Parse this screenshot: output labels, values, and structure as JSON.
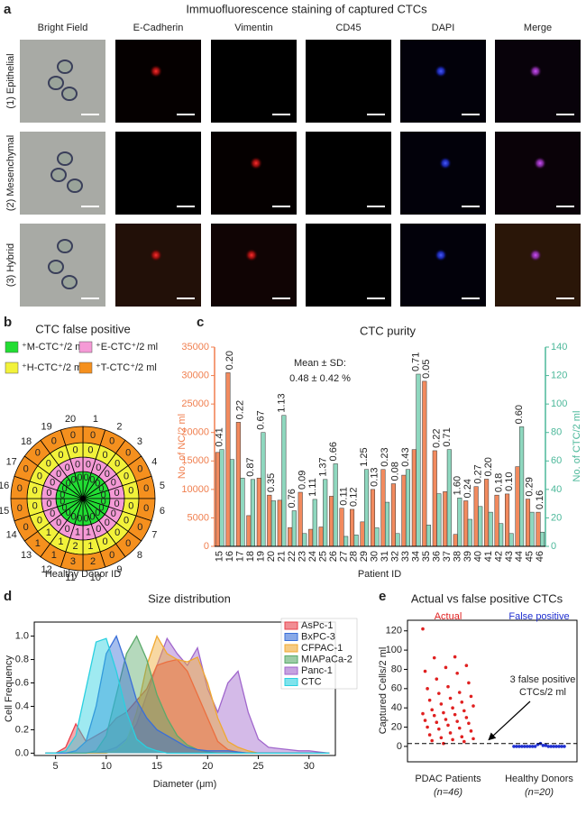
{
  "panel_a": {
    "label": "a",
    "title": "Immuofluorescence staining of captured CTCs",
    "columns": [
      "Bright Field",
      "E-Cadherin",
      "Vimentin",
      "CD45",
      "DAPI",
      "Merge"
    ],
    "rows": [
      "(1) Epithelial",
      "(2) Mesenchymal",
      "(3) Hybrid"
    ]
  },
  "chart_data": [
    {
      "type": "radial",
      "label": "b",
      "title": "CTC false positive",
      "xlabel": "Healthy Donor ID",
      "categories": [
        "1",
        "2",
        "3",
        "4",
        "5",
        "6",
        "7",
        "8",
        "9",
        "10",
        "11",
        "12",
        "13",
        "14",
        "15",
        "16",
        "17",
        "18",
        "19",
        "20"
      ],
      "series": [
        {
          "name": "⁺M-CTC⁺/2 ml",
          "color": "#22dd33",
          "values": [
            0,
            0,
            0,
            0,
            0,
            0,
            0,
            0,
            0,
            0,
            0,
            0,
            0,
            0,
            0,
            0,
            0,
            0,
            0,
            0
          ]
        },
        {
          "name": "⁺E-CTC⁺/2 ml",
          "color": "#f59ad6",
          "values": [
            0,
            0,
            0,
            0,
            0,
            0,
            0,
            0,
            0,
            1,
            1,
            0,
            0,
            0,
            0,
            0,
            0,
            0,
            0,
            0
          ]
        },
        {
          "name": "⁺H-CTC⁺/2 ml",
          "color": "#f2f23a",
          "values": [
            0,
            0,
            0,
            0,
            0,
            0,
            0,
            0,
            0,
            1,
            2,
            1,
            1,
            0,
            0,
            0,
            0,
            0,
            0,
            0
          ]
        },
        {
          "name": "⁺T-CTC⁺/2 ml",
          "color": "#f5901e",
          "values": [
            0,
            0,
            0,
            0,
            0,
            0,
            0,
            0,
            0,
            2,
            3,
            1,
            1,
            0,
            0,
            0,
            0,
            0,
            0,
            0
          ]
        }
      ]
    },
    {
      "type": "bar",
      "label": "c",
      "title": "CTC purity",
      "xlabel": "Patient ID",
      "ylabel": "No. of NC/2 ml",
      "y2label": "No. of CTC/2 ml",
      "annotation": [
        "Mean ± SD:",
        "0.48 ± 0.42 %"
      ],
      "categories": [
        "15",
        "16",
        "17",
        "18",
        "19",
        "20",
        "21",
        "22",
        "23",
        "24",
        "25",
        "26",
        "27",
        "28",
        "29",
        "30",
        "31",
        "32",
        "33",
        "34",
        "35",
        "36",
        "37",
        "38",
        "39",
        "40",
        "41",
        "42",
        "43",
        "44",
        "45",
        "46"
      ],
      "series": [
        {
          "color": "#f28a5e",
          "values": [
            16500,
            30500,
            21800,
            5400,
            12000,
            9000,
            8100,
            3300,
            9500,
            3000,
            3400,
            8800,
            6700,
            6500,
            4300,
            10000,
            13500,
            11000,
            12500,
            17000,
            29000,
            16800,
            9600,
            2100,
            8000,
            10500,
            11800,
            9000,
            9200,
            14000,
            8300,
            6000
          ]
        },
        {
          "color": "#8fd8bf",
          "axis": "y2",
          "values": [
            68,
            61,
            48,
            47,
            80,
            32,
            92,
            25,
            9,
            33,
            47,
            58,
            7,
            8,
            54,
            13,
            31,
            9,
            54,
            121,
            15,
            37,
            68,
            34,
            19,
            28,
            24,
            16,
            9,
            84,
            24,
            10
          ]
        }
      ],
      "purity": {
        "values": [
          0.41,
          0.2,
          0.22,
          0.87,
          0.67,
          0.35,
          1.13,
          0.76,
          0.09,
          1.11,
          1.37,
          0.66,
          0.11,
          0.12,
          1.25,
          0.13,
          0.23,
          0.08,
          0.43,
          0.71,
          0.05,
          0.22,
          0.71,
          1.6,
          0.24,
          0.27,
          0.2,
          0.18,
          0.1,
          0.6,
          0.29,
          0.16
        ],
        "value_labels": [
          "0.41",
          "0.20",
          "0.22",
          "0.87",
          "0.67",
          "0.35",
          "1.13",
          "0.76",
          "0.09",
          "1.11",
          "1.37",
          "0.66",
          "0.11",
          "0.12",
          "1.25",
          "0.13",
          "0.23",
          "0.08",
          "0.43",
          "0.71",
          "0.05",
          "0.22",
          "0.71",
          "1.60",
          "0.24",
          "0.27",
          "0.20",
          "0.18",
          "0.10",
          "0.60",
          "0.29",
          "0.16"
        ]
      },
      "ylim": [
        0,
        35000
      ],
      "yticks": [
        0,
        5000,
        10000,
        15000,
        20000,
        25000,
        30000,
        35000
      ],
      "y2lim": [
        0,
        140
      ],
      "y2ticks": [
        0,
        20,
        40,
        60,
        80,
        100,
        120,
        140
      ]
    },
    {
      "type": "area",
      "label": "d",
      "title": "Size distribution",
      "xlabel": "Diameter (μm)",
      "ylabel": "Cell Frequency",
      "x": [
        4,
        5,
        6,
        7,
        8,
        9,
        10,
        11,
        12,
        13,
        14,
        15,
        16,
        17,
        18,
        19,
        20,
        21,
        22,
        23,
        24,
        25,
        26,
        27,
        28,
        29,
        30,
        31,
        32
      ],
      "series": [
        {
          "name": "AsPc-1",
          "color": "#e8414b",
          "values": [
            0,
            0,
            0.05,
            0.25,
            0.1,
            0.15,
            0.2,
            0.3,
            0.35,
            0.45,
            0.55,
            0.75,
            0.78,
            0.8,
            0.7,
            0.5,
            0.3,
            0.1,
            0.03,
            0.01,
            0,
            0,
            0,
            0,
            0,
            0,
            0,
            0,
            0
          ]
        },
        {
          "name": "BxPC-3",
          "color": "#3a6fd8",
          "values": [
            0,
            0,
            0,
            0.02,
            0.1,
            0.4,
            0.85,
            1,
            0.75,
            0.45,
            0.3,
            0.2,
            0.15,
            0.1,
            0.05,
            0.03,
            0.02,
            0.02,
            0.02,
            0.01,
            0,
            0,
            0,
            0,
            0,
            0,
            0,
            0,
            0
          ]
        },
        {
          "name": "CFPAC-1",
          "color": "#f0a830",
          "values": [
            0,
            0,
            0,
            0,
            0,
            0,
            0,
            0.02,
            0.1,
            0.35,
            0.75,
            1,
            0.85,
            0.8,
            0.78,
            0.82,
            0.6,
            0.3,
            0.1,
            0.05,
            0.02,
            0,
            0,
            0,
            0,
            0,
            0,
            0,
            0
          ]
        },
        {
          "name": "MIAPaCa-2",
          "color": "#5aaa6a",
          "values": [
            0,
            0,
            0,
            0,
            0,
            0.02,
            0.15,
            0.5,
            0.85,
            1,
            0.8,
            0.5,
            0.3,
            0.15,
            0.07,
            0.03,
            0.01,
            0,
            0,
            0,
            0,
            0,
            0,
            0,
            0,
            0,
            0,
            0,
            0
          ]
        },
        {
          "name": "Panc-1",
          "color": "#a066cc",
          "values": [
            0,
            0,
            0,
            0,
            0,
            0,
            0.02,
            0.05,
            0.12,
            0.25,
            0.5,
            0.75,
            0.98,
            0.85,
            0.75,
            0.9,
            0.55,
            0.35,
            0.6,
            0.7,
            0.35,
            0.12,
            0.05,
            0.04,
            0.03,
            0.02,
            0.02,
            0.01,
            0
          ]
        },
        {
          "name": "CTC",
          "color": "#2ad0e0",
          "values": [
            0,
            0,
            0.02,
            0.15,
            0.55,
            0.95,
            0.98,
            0.7,
            0.35,
            0.12,
            0.05,
            0.02,
            0,
            0,
            0,
            0,
            0,
            0,
            0,
            0,
            0,
            0,
            0,
            0,
            0,
            0,
            0,
            0,
            0
          ]
        }
      ],
      "xlim": [
        2.9,
        32.6
      ],
      "xticks": [
        5,
        10,
        15,
        20,
        25,
        30
      ],
      "ylim": [
        -0.02,
        1.12
      ],
      "yticks": [
        {
          "value": 0,
          "label": "0.0"
        },
        0.2,
        0.4,
        0.6,
        0.8,
        {
          "value": 1,
          "label": "1.0"
        }
      ]
    },
    {
      "type": "strip",
      "label": "e",
      "title": "Actual vs false positive CTCs",
      "ylabel": "Captured Cells/2 ml",
      "categories": [
        "PDAC Patients",
        "Healthy Donors"
      ],
      "category_notes": [
        "(n=46)",
        "(n=20)"
      ],
      "series": [
        {
          "name": "Actual",
          "color": "#e02020",
          "values": [
            122,
            93,
            92,
            84,
            82,
            78,
            76,
            70,
            66,
            62,
            60,
            56,
            55,
            52,
            50,
            48,
            46,
            44,
            42,
            40,
            38,
            37,
            35,
            34,
            33,
            32,
            30,
            28,
            27,
            26,
            25,
            24,
            22,
            20,
            19,
            18,
            16,
            14,
            12,
            10,
            9,
            8,
            7,
            6,
            5,
            3
          ]
        },
        {
          "name": "False positive",
          "color": "#2030d0",
          "values": [
            0,
            0,
            0,
            0,
            0,
            0,
            0,
            0,
            0,
            2,
            3,
            1,
            1,
            0,
            0,
            0,
            0,
            0,
            0,
            0
          ]
        }
      ],
      "threshold": 3,
      "annotation": [
        "3 false positive",
        "CTCs/2 ml"
      ],
      "ylim": [
        -16,
        131
      ],
      "yticks": [
        0,
        20,
        40,
        60,
        80,
        100,
        120
      ]
    }
  ]
}
